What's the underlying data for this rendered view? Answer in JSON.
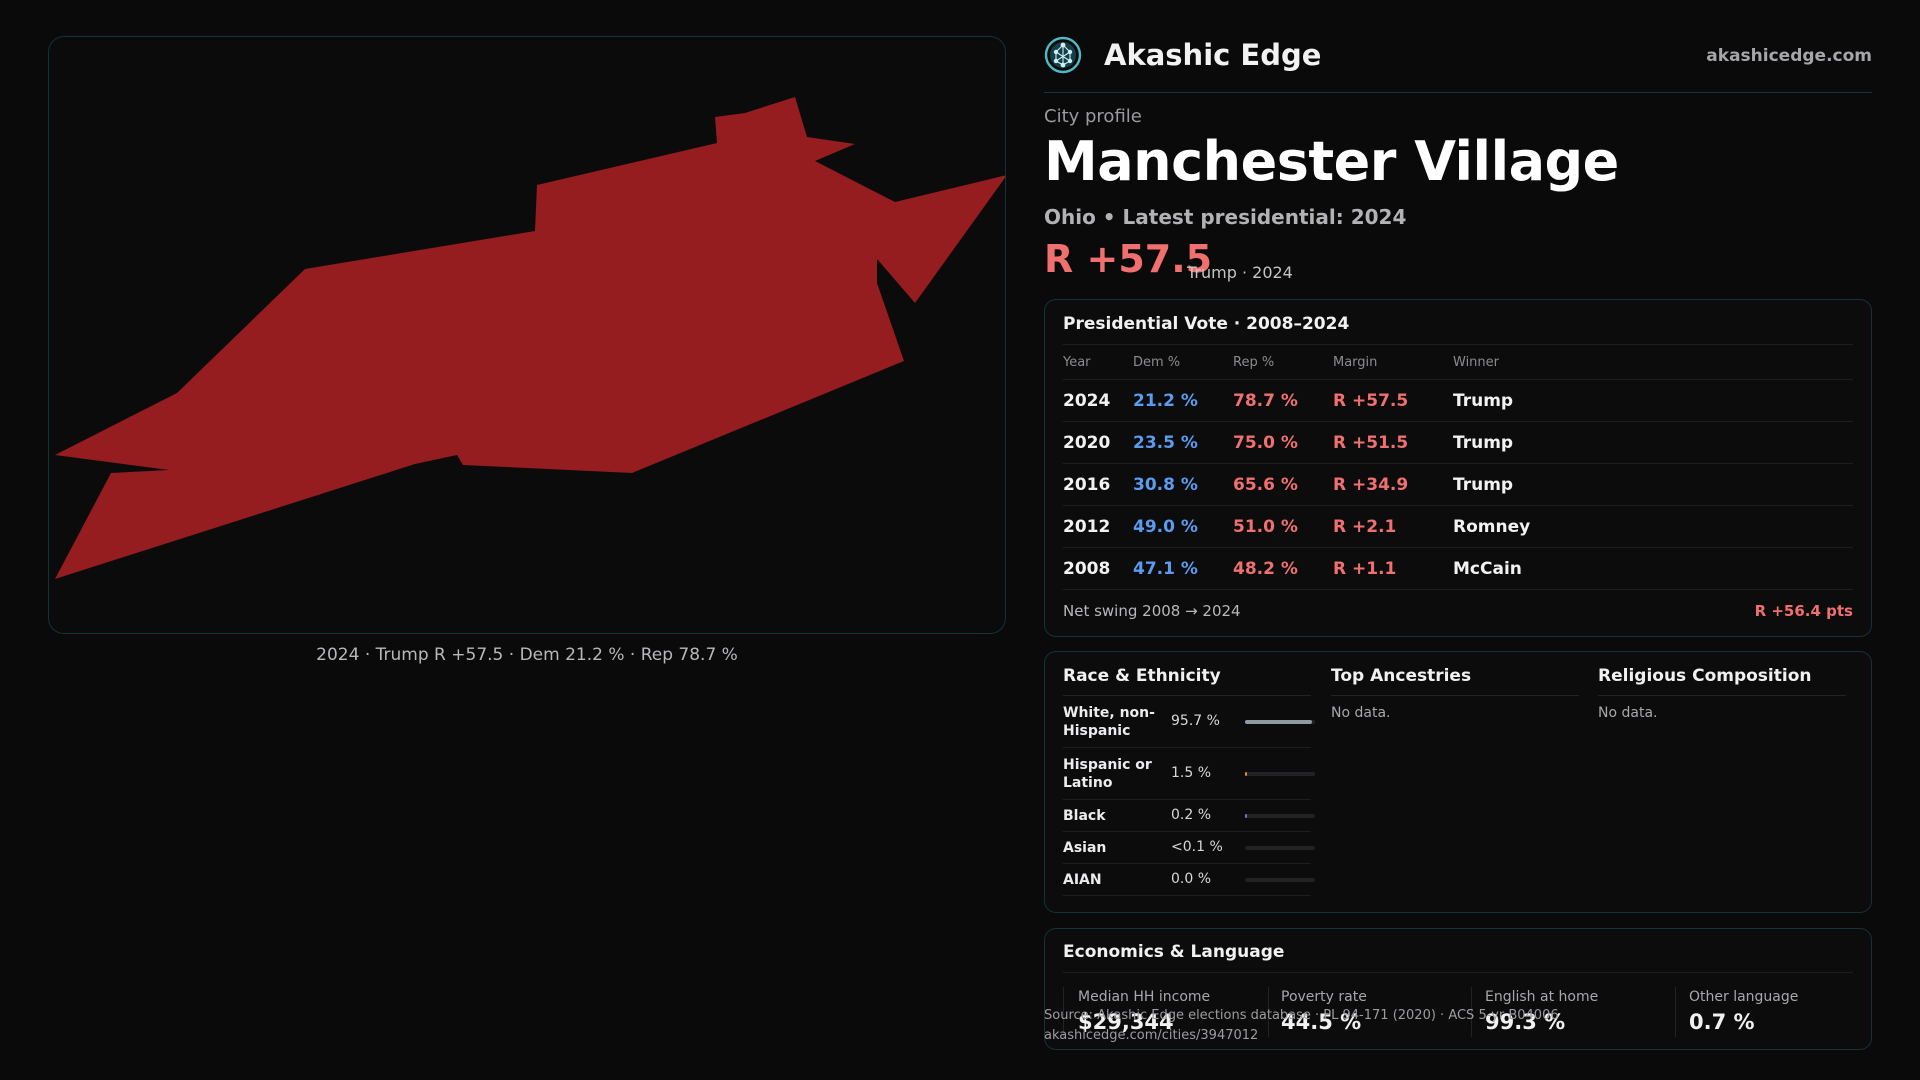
{
  "map": {
    "caption": "2024 · Trump R +57.5 · Dem 21.2 % · Rep 78.7 %",
    "fill_color": "#951c1f"
  },
  "header": {
    "brand": "Akashic Edge",
    "site": "akashicedge.com",
    "logo_icon": "tree-of-life-logo"
  },
  "profile": {
    "eyebrow": "City profile",
    "title": "Manchester Village",
    "subtitle": "Ohio • Latest presidential: 2024",
    "margin": "R +57.5",
    "margin_sub": "Trump · 2024"
  },
  "vote": {
    "title": "Presidential Vote · 2008–2024",
    "headers": [
      "Year",
      "Dem %",
      "Rep %",
      "Margin",
      "Winner"
    ],
    "rows": [
      {
        "year": "2024",
        "dem": "21.2 %",
        "rep": "78.7 %",
        "margin": "R +57.5",
        "winner": "Trump"
      },
      {
        "year": "2020",
        "dem": "23.5 %",
        "rep": "75.0 %",
        "margin": "R +51.5",
        "winner": "Trump"
      },
      {
        "year": "2016",
        "dem": "30.8 %",
        "rep": "65.6 %",
        "margin": "R +34.9",
        "winner": "Trump"
      },
      {
        "year": "2012",
        "dem": "49.0 %",
        "rep": "51.0 %",
        "margin": "R +2.1",
        "winner": "Romney"
      },
      {
        "year": "2008",
        "dem": "47.1 %",
        "rep": "48.2 %",
        "margin": "R +1.1",
        "winner": "McCain"
      }
    ],
    "swing_label": "Net swing 2008 → 2024",
    "swing_value": "R +56.4 pts"
  },
  "race": {
    "title": "Race & Ethnicity",
    "rows": [
      {
        "label": "White, non-Hispanic",
        "value": "95.7 %",
        "share": 0.957,
        "color": "#8e9ba3"
      },
      {
        "label": "Hispanic or Latino",
        "value": "1.5 %",
        "share": 0.015,
        "color": "#d98a3a"
      },
      {
        "label": "Black",
        "value": "0.2 %",
        "share": 0.002,
        "color": "#7d6fd0"
      },
      {
        "label": "Asian",
        "value": "<0.1 %",
        "share": 0.0,
        "color": "#3fb08c"
      },
      {
        "label": "AIAN",
        "value": "0.0 %",
        "share": 0.0,
        "color": "#c04a7a"
      }
    ]
  },
  "ancestries": {
    "title": "Top Ancestries",
    "empty": "No data."
  },
  "religion": {
    "title": "Religious Composition",
    "empty": "No data."
  },
  "econ": {
    "title": "Economics & Language",
    "stats": [
      {
        "label": "Median HH income",
        "value": "$29,344"
      },
      {
        "label": "Poverty rate",
        "value": "44.5 %"
      },
      {
        "label": "English at home",
        "value": "99.3 %"
      },
      {
        "label": "Other language",
        "value": "0.7 %"
      }
    ]
  },
  "source": {
    "line1": "Source: Akashic Edge elections database · PL 94-171 (2020) · ACS 5-yr B04006",
    "line2": "akashicedge.com/cities/3947012"
  }
}
